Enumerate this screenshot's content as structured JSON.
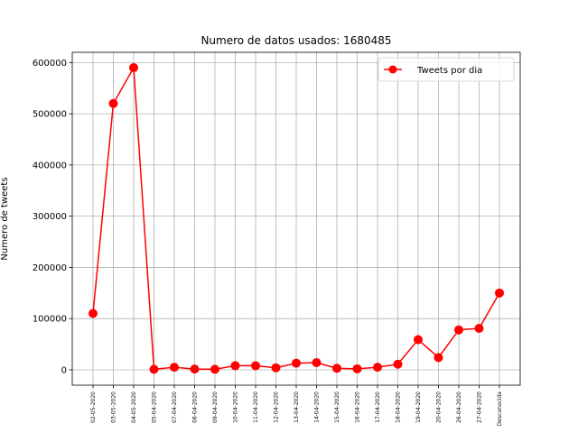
{
  "chart_data": {
    "type": "line",
    "title": "Numero de datos usados: 1680485",
    "xlabel": "",
    "ylabel": "Numero de tweets",
    "categories": [
      "02-05-2020",
      "03-05-2020",
      "04-05-2020",
      "05-04-2020",
      "07-04-2020",
      "08-04-2020",
      "09-04-2020",
      "10-04-2020",
      "11-04-2020",
      "12-04-2020",
      "13-04-2020",
      "14-04-2020",
      "15-04-2020",
      "16-04-2020",
      "17-04-2020",
      "18-04-2020",
      "19-04-2020",
      "20-04-2020",
      "26-04-2020",
      "27-04-2020",
      "Desconocida"
    ],
    "series": [
      {
        "name": "Tweets por dia",
        "color": "#ff0000",
        "marker": "circle",
        "values": [
          110000,
          520000,
          590000,
          1000,
          5000,
          1500,
          1000,
          8000,
          8000,
          4000,
          13000,
          14000,
          3000,
          2000,
          5000,
          11000,
          59000,
          24000,
          78000,
          81000,
          150000
        ]
      }
    ],
    "ylim": [
      -30000,
      620000
    ],
    "yticks": [
      0,
      100000,
      200000,
      300000,
      400000,
      500000,
      600000
    ],
    "ytick_labels": [
      "0",
      "100000",
      "200000",
      "300000",
      "400000",
      "500000",
      "600000"
    ],
    "grid": true,
    "legend_position": "top-right"
  }
}
